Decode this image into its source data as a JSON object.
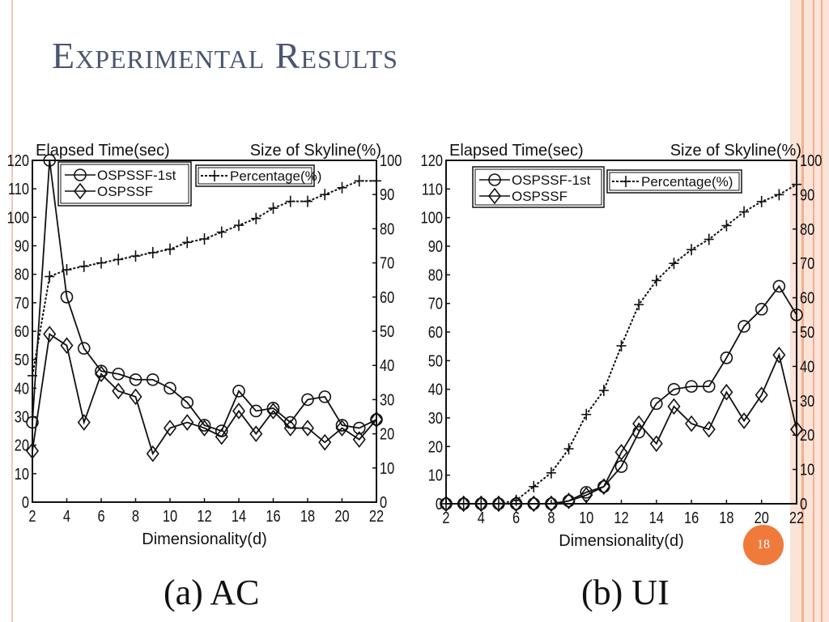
{
  "slide": {
    "title": "Experimental Results",
    "page_number": "18",
    "caption_a": "(a) AC",
    "caption_b": "(b) UI"
  },
  "colors": {
    "title": "#4a5670",
    "frame_stripe_1": "#f6cdb8",
    "frame_stripe_2": "#f2b092",
    "badge": "#f07a3c",
    "line": "#111111"
  },
  "chart_data": [
    {
      "type": "line",
      "caption": "(a) AC",
      "xlabel": "Dimensionality(d)",
      "ylabel_left": "Elapsed Time(sec)",
      "ylabel_right": "Size of Skyline(%)",
      "xlim": [
        2,
        22
      ],
      "ylim_left": [
        0,
        120
      ],
      "ylim_right": [
        0,
        100
      ],
      "x_ticks": [
        2,
        4,
        6,
        8,
        10,
        12,
        14,
        16,
        18,
        20,
        22
      ],
      "y_left_ticks": [
        0,
        10,
        20,
        30,
        40,
        50,
        60,
        70,
        80,
        90,
        100,
        110,
        120
      ],
      "y_right_ticks": [
        0,
        10,
        20,
        30,
        40,
        50,
        60,
        70,
        80,
        90,
        100
      ],
      "x": [
        2,
        3,
        4,
        5,
        6,
        7,
        8,
        9,
        10,
        11,
        12,
        13,
        14,
        15,
        16,
        17,
        18,
        19,
        20,
        21,
        22
      ],
      "series": [
        {
          "name": "OSPSSF-1st",
          "marker": "circle",
          "axis": "left",
          "values": [
            28,
            123,
            72,
            54,
            46,
            45,
            43,
            43,
            40,
            35,
            27,
            25,
            39,
            32,
            33,
            28,
            36,
            37,
            27,
            26,
            29
          ]
        },
        {
          "name": "OSPSSF",
          "marker": "diamond",
          "axis": "left",
          "values": [
            18,
            59,
            55,
            28,
            45,
            39,
            37,
            17,
            26,
            28,
            26,
            23,
            32,
            24,
            32,
            26,
            26,
            21,
            26,
            22,
            29
          ]
        },
        {
          "name": "Percentage(%)",
          "marker": "plus",
          "axis": "right",
          "dashed": true,
          "values": [
            37,
            66,
            68,
            69,
            70,
            71,
            72,
            73,
            74,
            76,
            77,
            79,
            81,
            83,
            86,
            88,
            88,
            90,
            92,
            94,
            94
          ]
        }
      ]
    },
    {
      "type": "line",
      "caption": "(b) UI",
      "xlabel": "Dimensionality(d)",
      "ylabel_left": "Elapsed Time(sec)",
      "ylabel_right": "Size of Skyline(%)",
      "xlim": [
        2,
        22
      ],
      "ylim_left": [
        0,
        120
      ],
      "ylim_right": [
        0,
        100
      ],
      "x_ticks": [
        2,
        4,
        6,
        8,
        10,
        12,
        14,
        16,
        18,
        20,
        22
      ],
      "y_left_ticks": [
        0,
        10,
        20,
        30,
        40,
        50,
        60,
        70,
        80,
        90,
        100,
        110,
        120
      ],
      "y_right_ticks": [
        0,
        10,
        20,
        30,
        40,
        50,
        60,
        70,
        80,
        90,
        100
      ],
      "x": [
        2,
        3,
        4,
        5,
        6,
        7,
        8,
        9,
        10,
        11,
        12,
        13,
        14,
        15,
        16,
        17,
        18,
        19,
        20,
        21,
        22
      ],
      "series": [
        {
          "name": "OSPSSF-1st",
          "marker": "circle",
          "axis": "left",
          "values": [
            0,
            0,
            0,
            0,
            0,
            0,
            0,
            1,
            4,
            6,
            13,
            25,
            35,
            40,
            41,
            41,
            51,
            62,
            68,
            76,
            66
          ]
        },
        {
          "name": "OSPSSF",
          "marker": "diamond",
          "axis": "left",
          "values": [
            0,
            0,
            0,
            0,
            0,
            0,
            0,
            1,
            3,
            6,
            18,
            28,
            21,
            34,
            28,
            26,
            39,
            29,
            38,
            52,
            26
          ]
        },
        {
          "name": "Percentage(%)",
          "marker": "plus",
          "axis": "right",
          "dashed": true,
          "values": [
            0,
            0,
            0,
            0,
            1,
            5,
            9,
            16,
            26,
            33,
            46,
            58,
            65,
            70,
            74,
            77,
            81,
            85,
            88,
            90,
            93
          ]
        }
      ]
    }
  ]
}
